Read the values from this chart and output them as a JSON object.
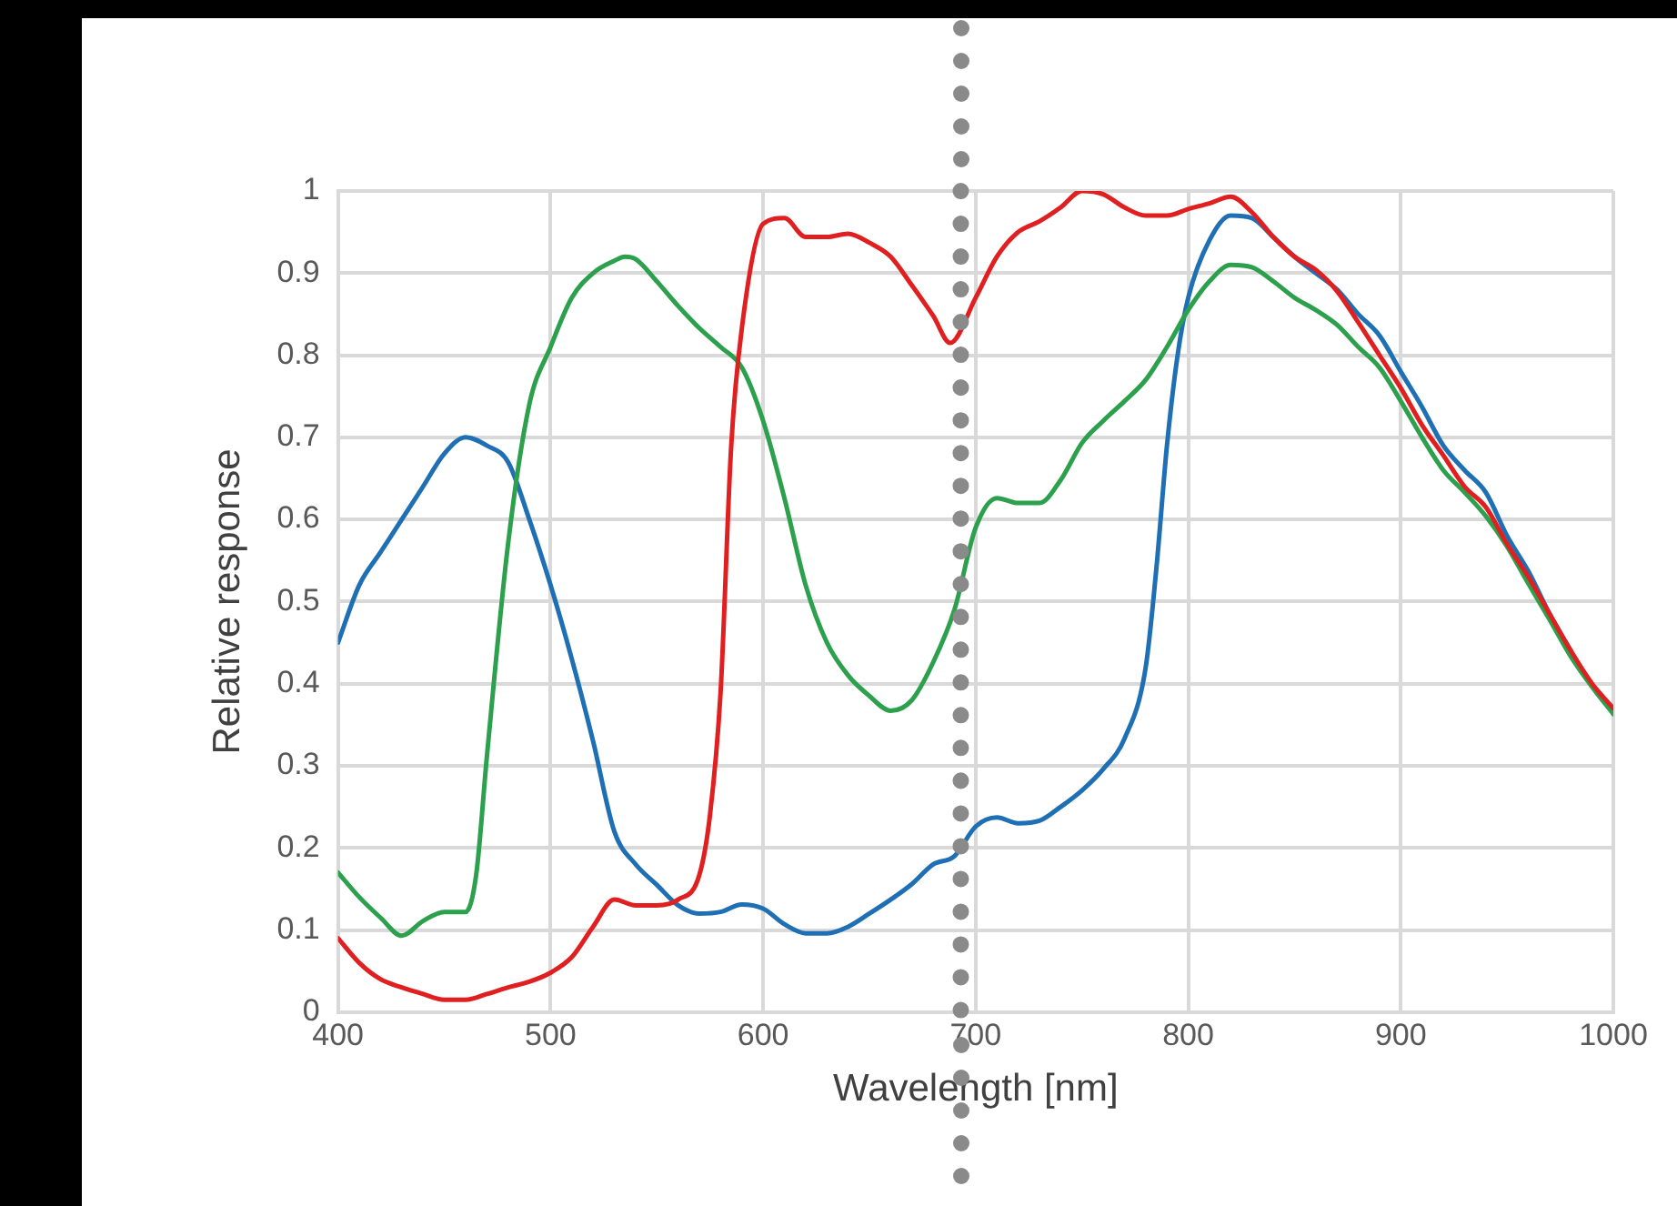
{
  "chart_data": {
    "type": "line",
    "xlabel": "Wavelength [nm]",
    "ylabel": "Relative response",
    "xlim": [
      400,
      1000
    ],
    "ylim": [
      0,
      1
    ],
    "xticks": [
      400,
      500,
      600,
      700,
      800,
      900,
      1000
    ],
    "yticks": [
      0,
      0.1,
      0.2,
      0.3,
      0.4,
      0.5,
      0.6,
      0.7,
      0.8,
      0.9,
      1
    ],
    "grid": true,
    "legend": false,
    "ref_lines": [
      {
        "axis": "x",
        "value": 693,
        "line_style": "dotted",
        "color": "#8a8a8a"
      }
    ],
    "marker": "none",
    "line_style": "solid",
    "series": [
      {
        "color": "#1f6fb4",
        "x": [
          400,
          410,
          420,
          430,
          440,
          450,
          460,
          470,
          480,
          490,
          500,
          510,
          520,
          530,
          540,
          550,
          560,
          570,
          580,
          590,
          600,
          610,
          620,
          630,
          640,
          650,
          660,
          670,
          680,
          690,
          700,
          710,
          720,
          730,
          740,
          750,
          760,
          770,
          780,
          785,
          790,
          795,
          800,
          810,
          820,
          830,
          840,
          850,
          860,
          870,
          880,
          890,
          900,
          910,
          920,
          930,
          940,
          950,
          960,
          970,
          980
        ],
        "values": [
          0.45,
          0.52,
          0.56,
          0.6,
          0.64,
          0.68,
          0.7,
          0.69,
          0.67,
          0.6,
          0.52,
          0.43,
          0.33,
          0.22,
          0.18,
          0.155,
          0.13,
          0.12,
          0.122,
          0.131,
          0.126,
          0.107,
          0.096,
          0.096,
          0.104,
          0.12,
          0.137,
          0.156,
          0.18,
          0.19,
          0.226,
          0.237,
          0.23,
          0.233,
          0.25,
          0.27,
          0.296,
          0.333,
          0.42,
          0.54,
          0.69,
          0.8,
          0.87,
          0.94,
          0.97,
          0.967,
          0.944,
          0.92,
          0.9,
          0.88,
          0.85,
          0.824,
          0.78,
          0.737,
          0.69,
          0.66,
          0.633,
          0.58,
          0.537,
          0.485,
          0.44
        ]
      },
      {
        "color": "#2ca04c",
        "x": [
          400,
          410,
          420,
          430,
          440,
          450,
          460,
          465,
          470,
          480,
          490,
          500,
          510,
          520,
          530,
          535,
          540,
          550,
          560,
          570,
          580,
          590,
          600,
          610,
          620,
          630,
          640,
          650,
          660,
          670,
          680,
          690,
          700,
          710,
          720,
          730,
          740,
          750,
          760,
          770,
          780,
          790,
          800,
          810,
          820,
          830,
          840,
          850,
          860,
          870,
          880,
          890,
          900,
          910,
          920,
          930,
          940,
          950,
          960,
          970,
          980,
          990,
          1000
        ],
        "values": [
          0.17,
          0.14,
          0.115,
          0.093,
          0.111,
          0.122,
          0.122,
          0.167,
          0.31,
          0.57,
          0.74,
          0.81,
          0.87,
          0.9,
          0.915,
          0.92,
          0.917,
          0.89,
          0.86,
          0.833,
          0.81,
          0.785,
          0.72,
          0.626,
          0.52,
          0.45,
          0.41,
          0.385,
          0.367,
          0.38,
          0.426,
          0.49,
          0.59,
          0.626,
          0.62,
          0.62,
          0.648,
          0.693,
          0.72,
          0.744,
          0.77,
          0.81,
          0.855,
          0.89,
          0.91,
          0.907,
          0.89,
          0.87,
          0.855,
          0.837,
          0.81,
          0.785,
          0.744,
          0.7,
          0.66,
          0.633,
          0.604,
          0.567,
          0.522,
          0.478,
          0.433,
          0.396,
          0.363
        ]
      },
      {
        "color": "#e02020",
        "x": [
          400,
          410,
          420,
          430,
          440,
          450,
          460,
          470,
          480,
          490,
          500,
          510,
          520,
          530,
          540,
          550,
          560,
          570,
          575,
          580,
          585,
          590,
          600,
          610,
          620,
          630,
          640,
          650,
          660,
          670,
          680,
          688,
          700,
          710,
          720,
          730,
          740,
          750,
          760,
          770,
          780,
          790,
          800,
          810,
          820,
          830,
          840,
          850,
          860,
          870,
          880,
          890,
          900,
          910,
          920,
          930,
          940,
          950,
          960,
          970,
          980,
          990,
          1000
        ],
        "values": [
          0.09,
          0.06,
          0.04,
          0.03,
          0.022,
          0.015,
          0.015,
          0.022,
          0.03,
          0.037,
          0.048,
          0.067,
          0.104,
          0.137,
          0.13,
          0.13,
          0.137,
          0.167,
          0.24,
          0.39,
          0.69,
          0.833,
          0.96,
          0.967,
          0.944,
          0.944,
          0.948,
          0.937,
          0.92,
          0.885,
          0.848,
          0.815,
          0.87,
          0.92,
          0.95,
          0.963,
          0.98,
          1,
          0.996,
          0.98,
          0.97,
          0.97,
          0.978,
          0.985,
          0.993,
          0.974,
          0.944,
          0.92,
          0.904,
          0.878,
          0.84,
          0.8,
          0.76,
          0.715,
          0.678,
          0.64,
          0.615,
          0.57,
          0.53,
          0.485,
          0.44,
          0.4,
          0.37
        ]
      }
    ]
  }
}
